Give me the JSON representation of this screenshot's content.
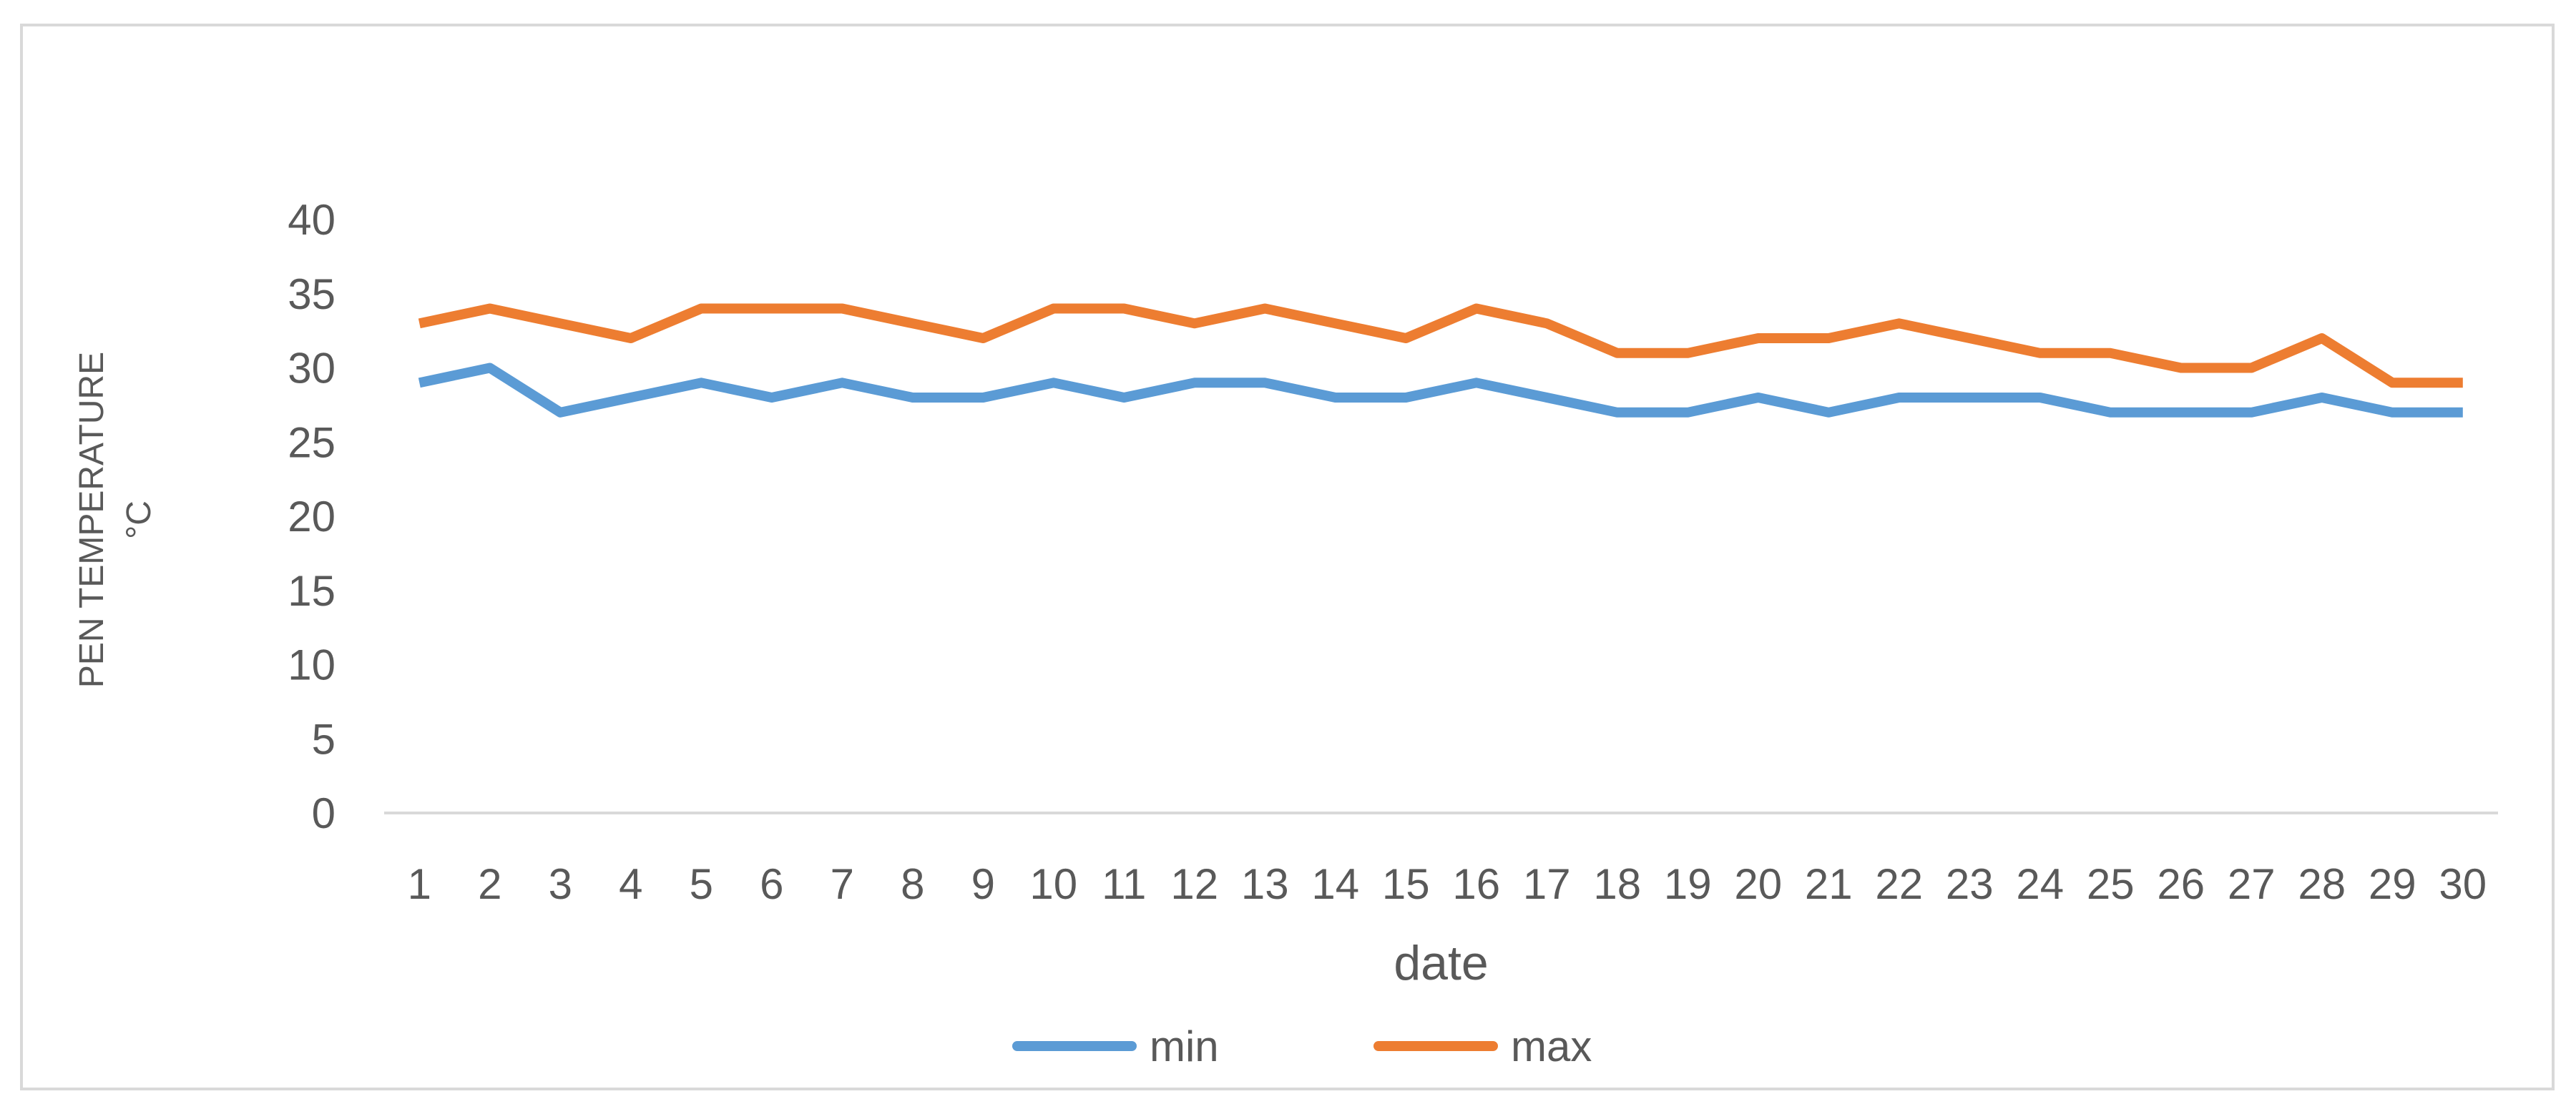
{
  "chart_data": {
    "type": "line",
    "title": "",
    "xlabel": "date",
    "ylabel_lines": [
      "PEN TEMPERATURE",
      "°C"
    ],
    "x": [
      "1",
      "2",
      "3",
      "4",
      "5",
      "6",
      "7",
      "8",
      "9",
      "10",
      "11",
      "12",
      "13",
      "14",
      "15",
      "16",
      "17",
      "18",
      "19",
      "20",
      "21",
      "22",
      "23",
      "24",
      "25",
      "26",
      "27",
      "28",
      "29",
      "30"
    ],
    "ylim": [
      0,
      40
    ],
    "yticks": [
      "0",
      "5",
      "10",
      "15",
      "20",
      "25",
      "30",
      "35",
      "40"
    ],
    "grid": false,
    "legend_position": "bottom",
    "series": [
      {
        "name": "min",
        "color": "#5b9bd5",
        "values": [
          29,
          30,
          27,
          28,
          29,
          28,
          29,
          28,
          28,
          29,
          28,
          29,
          29,
          28,
          28,
          29,
          28,
          27,
          27,
          28,
          27,
          28,
          28,
          28,
          27,
          27,
          27,
          28,
          27,
          27
        ]
      },
      {
        "name": "max",
        "color": "#ed7d31",
        "values": [
          33,
          34,
          33,
          32,
          34,
          34,
          34,
          33,
          32,
          34,
          34,
          33,
          34,
          33,
          32,
          34,
          33,
          31,
          31,
          32,
          32,
          33,
          32,
          31,
          31,
          30,
          30,
          32,
          29,
          29
        ]
      }
    ]
  }
}
